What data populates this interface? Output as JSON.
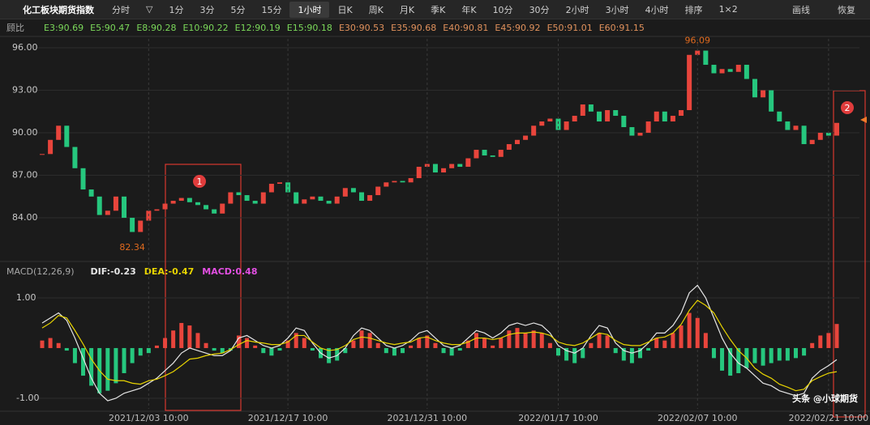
{
  "toolbar": {
    "title": "化工板块期货指数",
    "buttons": [
      "分时",
      "▽",
      "1分",
      "3分",
      "5分",
      "15分",
      "1小时",
      "日K",
      "周K",
      "月K",
      "季K",
      "年K",
      "10分",
      "30分",
      "2小时",
      "3小时",
      "4小时",
      "排序",
      "1×2"
    ],
    "active": "1小时",
    "right": [
      "画线",
      "恢复"
    ]
  },
  "chart_data": [
    {
      "type": "candlestick",
      "legend": {
        "label": "顾比",
        "items": [
          {
            "text": "E3:90.69",
            "color": "#7bd85a"
          },
          {
            "text": "E5:90.47",
            "color": "#7bd85a"
          },
          {
            "text": "E8:90.28",
            "color": "#7bd85a"
          },
          {
            "text": "E10:90.22",
            "color": "#7bd85a"
          },
          {
            "text": "E12:90.19",
            "color": "#7bd85a"
          },
          {
            "text": "E15:90.18",
            "color": "#7bd85a"
          },
          {
            "text": "E30:90.53",
            "color": "#e0915c"
          },
          {
            "text": "E35:90.68",
            "color": "#e0915c"
          },
          {
            "text": "E40:90.81",
            "color": "#e0915c"
          },
          {
            "text": "E45:90.92",
            "color": "#e0915c"
          },
          {
            "text": "E50:91.01",
            "color": "#e0915c"
          },
          {
            "text": "E60:91.15",
            "color": "#e0915c"
          }
        ]
      },
      "values": [
        88.5,
        89.5,
        90.5,
        89.0,
        87.5,
        86.0,
        85.5,
        84.2,
        84.5,
        85.5,
        84.0,
        83.0,
        83.8,
        84.5,
        84.6,
        85.0,
        85.2,
        85.4,
        85.1,
        84.9,
        84.6,
        84.3,
        85.0,
        85.8,
        85.6,
        85.2,
        85.0,
        85.8,
        86.4,
        86.5,
        85.8,
        85.0,
        85.3,
        85.5,
        85.2,
        85.0,
        85.5,
        86.1,
        85.8,
        85.2,
        85.6,
        86.2,
        86.5,
        86.6,
        86.5,
        86.8,
        87.6,
        87.8,
        87.2,
        87.5,
        87.8,
        87.6,
        88.2,
        88.8,
        88.4,
        88.3,
        88.8,
        89.2,
        89.5,
        89.8,
        90.5,
        90.8,
        91.0,
        90.2,
        90.8,
        91.2,
        92.0,
        91.5,
        90.8,
        91.6,
        91.2,
        90.4,
        89.8,
        90.0,
        90.8,
        91.5,
        90.8,
        91.2,
        91.6,
        95.5,
        95.8,
        94.8,
        94.2,
        94.5,
        94.3,
        94.8,
        93.8,
        92.5,
        93.0,
        91.5,
        90.8,
        90.2,
        90.5,
        89.2,
        89.5,
        90.0,
        89.8,
        90.7
      ],
      "up_color": "#e8453c",
      "down_color": "#26c77e",
      "ylim": [
        81.66,
        96.63
      ],
      "yticks": [
        {
          "value": 84,
          "label": "84.00"
        },
        {
          "value": 87,
          "label": "87.00"
        },
        {
          "value": 90,
          "label": "90.00"
        },
        {
          "value": 93,
          "label": "93.00"
        },
        {
          "value": 96,
          "label": "96.00"
        }
      ],
      "grid": true,
      "low_label": 82.34,
      "high_label": 96.09,
      "label_color": "#e06a1e",
      "markers": [
        "1",
        "2"
      ]
    },
    {
      "type": "bar",
      "title": "MACD(12,26,9)",
      "categories": [
        null,
        null,
        null,
        null,
        null,
        null,
        null,
        null,
        null,
        null,
        null,
        null,
        null,
        "2021/12/03 10:00",
        null,
        null,
        null,
        null,
        null,
        null,
        null,
        null,
        null,
        null,
        null,
        null,
        null,
        null,
        null,
        null,
        "2021/12/17 10:00",
        null,
        null,
        null,
        null,
        null,
        null,
        null,
        null,
        null,
        null,
        null,
        null,
        null,
        null,
        null,
        null,
        "2021/12/31 10:00",
        null,
        null,
        null,
        null,
        null,
        null,
        null,
        null,
        null,
        null,
        null,
        null,
        null,
        null,
        null,
        "2022/01/17 10:00",
        null,
        null,
        null,
        null,
        null,
        null,
        null,
        null,
        null,
        null,
        null,
        null,
        null,
        null,
        null,
        null,
        "2022/02/07 10:00",
        null,
        null,
        null,
        null,
        null,
        null,
        null,
        null,
        null,
        null,
        null,
        null,
        null,
        null,
        null,
        "2022/02/21 10:00",
        null
      ],
      "ylim": [
        -1.21,
        1.37
      ],
      "yticks": [
        {
          "value": -1,
          "label": "-1.00"
        },
        {
          "value": 1,
          "label": "1.00"
        }
      ],
      "series": [
        {
          "name": "DIF:-0.23",
          "color": "#e6e6e6",
          "kind": "line",
          "values": [
            0.5,
            0.6,
            0.7,
            0.55,
            0.2,
            -0.2,
            -0.6,
            -0.9,
            -1.05,
            -1.0,
            -0.9,
            -0.85,
            -0.8,
            -0.7,
            -0.6,
            -0.45,
            -0.3,
            -0.1,
            0.0,
            -0.05,
            -0.1,
            -0.15,
            -0.15,
            -0.05,
            0.2,
            0.25,
            0.15,
            0.05,
            0.0,
            0.05,
            0.2,
            0.4,
            0.35,
            0.1,
            -0.1,
            -0.2,
            -0.15,
            0.0,
            0.25,
            0.4,
            0.35,
            0.2,
            0.05,
            0.0,
            0.05,
            0.15,
            0.3,
            0.35,
            0.2,
            0.05,
            0.0,
            0.05,
            0.2,
            0.35,
            0.3,
            0.2,
            0.3,
            0.45,
            0.5,
            0.45,
            0.5,
            0.45,
            0.3,
            0.05,
            -0.05,
            -0.1,
            0.0,
            0.25,
            0.45,
            0.4,
            0.1,
            -0.05,
            -0.1,
            -0.05,
            0.1,
            0.3,
            0.3,
            0.45,
            0.7,
            1.1,
            1.25,
            1.0,
            0.6,
            0.2,
            -0.1,
            -0.3,
            -0.4,
            -0.55,
            -0.7,
            -0.75,
            -0.85,
            -0.9,
            -0.95,
            -0.9,
            -0.6,
            -0.45,
            -0.35,
            -0.23
          ]
        },
        {
          "name": "DEA:-0.47",
          "color": "#e8d400",
          "kind": "line",
          "values": [
            0.4,
            0.5,
            0.65,
            0.6,
            0.35,
            0.08,
            -0.22,
            -0.45,
            -0.62,
            -0.65,
            -0.65,
            -0.7,
            -0.72,
            -0.65,
            -0.62,
            -0.55,
            -0.47,
            -0.35,
            -0.22,
            -0.2,
            -0.15,
            -0.12,
            -0.1,
            -0.03,
            0.07,
            0.15,
            0.12,
            0.1,
            0.07,
            0.07,
            0.12,
            0.25,
            0.25,
            0.12,
            0.0,
            -0.05,
            -0.03,
            0.05,
            0.17,
            0.22,
            0.2,
            0.15,
            0.1,
            0.07,
            0.1,
            0.12,
            0.2,
            0.22,
            0.15,
            0.1,
            0.07,
            0.07,
            0.12,
            0.2,
            0.2,
            0.17,
            0.2,
            0.27,
            0.3,
            0.3,
            0.32,
            0.3,
            0.25,
            0.12,
            0.07,
            0.05,
            0.1,
            0.2,
            0.3,
            0.27,
            0.15,
            0.07,
            0.05,
            0.05,
            0.12,
            0.2,
            0.22,
            0.3,
            0.47,
            0.75,
            0.95,
            0.85,
            0.7,
            0.42,
            0.17,
            -0.05,
            -0.2,
            -0.4,
            -0.52,
            -0.6,
            -0.72,
            -0.78,
            -0.85,
            -0.82,
            -0.65,
            -0.57,
            -0.5,
            -0.47
          ]
        },
        {
          "name": "MACD:0.48",
          "color": "#e24fe2",
          "kind": "bar",
          "up_color": "#e8453c",
          "down_color": "#26c77e",
          "values": [
            0.15,
            0.2,
            0.1,
            -0.05,
            -0.3,
            -0.55,
            -0.75,
            -0.9,
            -0.85,
            -0.7,
            -0.5,
            -0.3,
            -0.15,
            -0.1,
            0.05,
            0.2,
            0.35,
            0.5,
            0.45,
            0.3,
            0.1,
            -0.05,
            -0.1,
            -0.05,
            0.25,
            0.2,
            0.05,
            -0.1,
            -0.15,
            -0.05,
            0.15,
            0.3,
            0.2,
            -0.05,
            -0.2,
            -0.3,
            -0.25,
            -0.1,
            0.15,
            0.35,
            0.3,
            0.1,
            -0.1,
            -0.15,
            -0.1,
            0.05,
            0.2,
            0.25,
            0.1,
            -0.1,
            -0.15,
            -0.05,
            0.15,
            0.3,
            0.2,
            0.05,
            0.2,
            0.35,
            0.4,
            0.3,
            0.35,
            0.3,
            0.1,
            -0.15,
            -0.25,
            -0.3,
            -0.2,
            0.1,
            0.3,
            0.25,
            -0.1,
            -0.25,
            -0.3,
            -0.2,
            -0.05,
            0.2,
            0.15,
            0.3,
            0.45,
            0.7,
            0.6,
            0.3,
            -0.2,
            -0.45,
            -0.55,
            -0.5,
            -0.4,
            -0.3,
            -0.35,
            -0.3,
            -0.25,
            -0.25,
            -0.2,
            -0.15,
            0.1,
            0.25,
            0.3,
            0.48
          ]
        }
      ]
    }
  ],
  "watermark": "头条 @小球期货"
}
